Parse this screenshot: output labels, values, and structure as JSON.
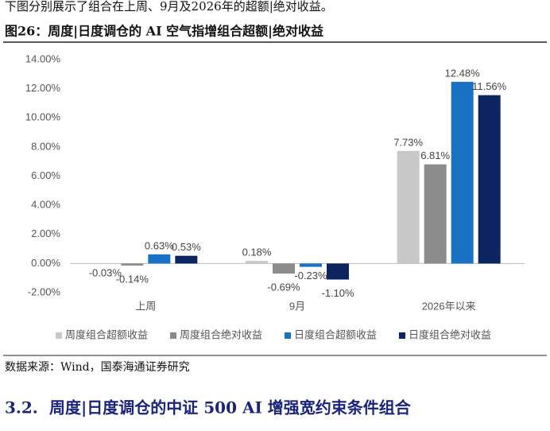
{
  "intro": "下图分别展示了组合在上周、9月及2026年的超额|绝对收益。",
  "figure": {
    "title": "图26：周度|日度调仓的 AI 空气指增组合超额|绝对收益"
  },
  "chart_data": {
    "type": "bar",
    "categories": [
      "上周",
      "9月",
      "2026年以来"
    ],
    "series": [
      {
        "name": "周度组合超额收益",
        "color": "#c8c8c8",
        "values": [
          -0.03,
          0.18,
          7.73
        ],
        "value_labels": [
          "-0.03%",
          "0.18%",
          "7.73%"
        ]
      },
      {
        "name": "周度组合绝对收益",
        "color": "#8c8c8c",
        "values": [
          -0.14,
          -0.69,
          6.81
        ],
        "value_labels": [
          "-0.14%",
          "-0.69%",
          "6.81%"
        ]
      },
      {
        "name": "日度组合超额收益",
        "color": "#1a72c4",
        "values": [
          0.63,
          -0.23,
          12.48
        ],
        "value_labels": [
          "0.63%",
          "-0.23%",
          "12.48%"
        ]
      },
      {
        "name": "日度组合绝对收益",
        "color": "#0c2460",
        "values": [
          0.53,
          -1.1,
          11.56
        ],
        "value_labels": [
          "0.53%",
          "-1.10%",
          "11.56%"
        ]
      }
    ],
    "ylim": [
      -2,
      14
    ],
    "yticks": [
      {
        "value": -2,
        "label": "-2.00%"
      },
      {
        "value": 0,
        "label": "0.00%"
      },
      {
        "value": 2,
        "label": "2.00%"
      },
      {
        "value": 4,
        "label": "4.00%"
      },
      {
        "value": 6,
        "label": "6.00%"
      },
      {
        "value": 8,
        "label": "8.00%"
      },
      {
        "value": 10,
        "label": "10.00%"
      },
      {
        "value": 12,
        "label": "12.00%"
      },
      {
        "value": 14,
        "label": "14.00%"
      }
    ],
    "legend": "bottom",
    "grid": false
  },
  "source": "数据来源：Wind，国泰海通证券研究",
  "section": {
    "number": "3.2.",
    "title": "周度|日度调仓的中证 500 AI 增强宽约束条件组合"
  }
}
